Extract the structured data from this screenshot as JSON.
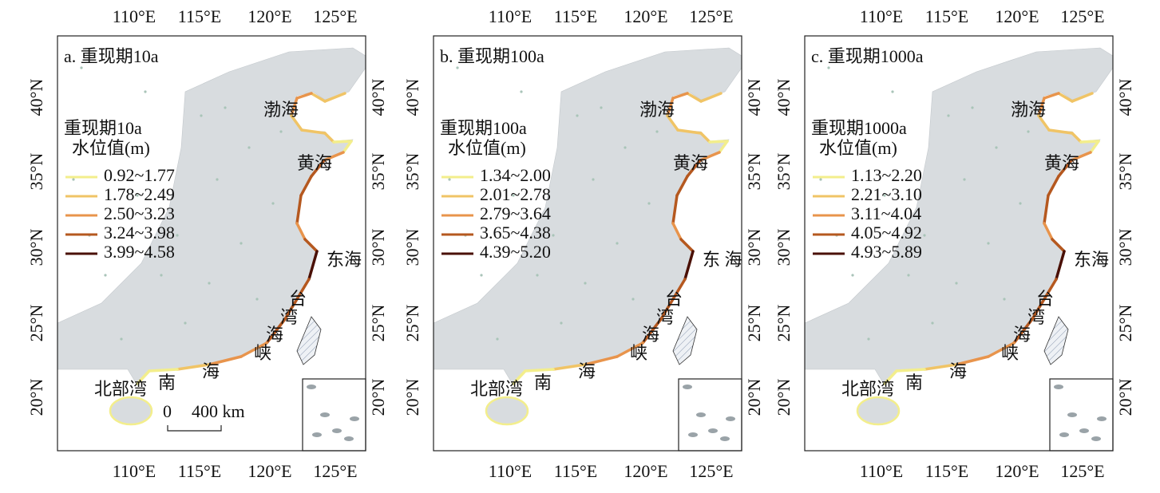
{
  "lon_ticks": [
    "110°E",
    "115°E",
    "120°E",
    "125°E"
  ],
  "lat_ticks": [
    "40°N",
    "35°N",
    "30°N",
    "25°N",
    "20°N"
  ],
  "panels": [
    {
      "label": "a. 重现期10a",
      "legend_title": [
        "重现期10a",
        "水位值(m)"
      ],
      "legend_items": [
        {
          "label": "0.92~1.77",
          "color": "#f3ee8c"
        },
        {
          "label": "1.78~2.49",
          "color": "#f0c466"
        },
        {
          "label": "2.50~3.23",
          "color": "#e8944c"
        },
        {
          "label": "3.24~3.98",
          "color": "#b5581f"
        },
        {
          "label": "3.99~4.58",
          "color": "#4a1006"
        }
      ],
      "places": [
        "渤海",
        "黄海",
        "东海",
        "台",
        "湾",
        "海",
        "峡",
        "北部湾",
        "南",
        "海"
      ],
      "scale_bar": [
        "0",
        "400 km"
      ]
    },
    {
      "label": "b. 重现期100a",
      "legend_title": [
        "重现期100a",
        "水位值(m)"
      ],
      "legend_items": [
        {
          "label": "1.34~2.00",
          "color": "#f3ee8c"
        },
        {
          "label": "2.01~2.78",
          "color": "#f0c466"
        },
        {
          "label": "2.79~3.64",
          "color": "#e8944c"
        },
        {
          "label": "3.65~4.38",
          "color": "#b5581f"
        },
        {
          "label": "4.39~5.20",
          "color": "#4a1006"
        }
      ],
      "places": [
        "渤海",
        "黄海",
        "东 海",
        "台",
        "湾",
        "海",
        "峡",
        "北部湾",
        "南",
        "海"
      ]
    },
    {
      "label": "c. 重现期1000a",
      "legend_title": [
        "重现期1000a",
        "水位值(m)"
      ],
      "legend_items": [
        {
          "label": "1.13~2.20",
          "color": "#f3ee8c"
        },
        {
          "label": "2.21~3.10",
          "color": "#f0c466"
        },
        {
          "label": "3.11~4.04",
          "color": "#e8944c"
        },
        {
          "label": "4.05~4.92",
          "color": "#b5581f"
        },
        {
          "label": "4.93~5.89",
          "color": "#4a1006"
        }
      ],
      "places": [
        "渤海",
        "黄海",
        "东海",
        "台",
        "湾",
        "海",
        "峡",
        "北部湾",
        "南",
        "海"
      ]
    }
  ]
}
